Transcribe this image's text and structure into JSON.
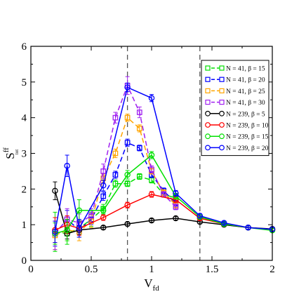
{
  "chart_data": {
    "type": "line",
    "title": "",
    "xlabel_main": "V",
    "xlabel_sub": "fd",
    "ylabel_main": "S",
    "ylabel_sup": "ff",
    "ylabel_sub": "tot",
    "xlim": [
      0,
      2
    ],
    "ylim": [
      0,
      6
    ],
    "xticks": [
      0,
      0.5,
      1,
      1.5,
      2
    ],
    "xtick_labels": [
      "0",
      "0.5",
      "1",
      "1.5",
      "2"
    ],
    "yticks": [
      0,
      1,
      2,
      3,
      4,
      5,
      6
    ],
    "ytick_labels": [
      "0",
      "1",
      "2",
      "3",
      "4",
      "5",
      "6"
    ],
    "grid": false,
    "legend_position": "top-right",
    "vlines": [
      0.8,
      1.4
    ],
    "series": [
      {
        "name": "N = 41,   β = 15",
        "color": "#00e000",
        "marker": "square",
        "dashed": true,
        "x": [
          0.2,
          0.3,
          0.4,
          0.5,
          0.6,
          0.7,
          0.8,
          0.9,
          1.0,
          1.1,
          1.2
        ],
        "y": [
          0.8,
          0.75,
          0.9,
          1.15,
          1.45,
          2.15,
          2.15,
          2.35,
          2.25,
          1.85,
          1.75
        ],
        "err": [
          0.55,
          0.3,
          0.25,
          0.2,
          0.12,
          0.1,
          0.08,
          0.08,
          0.08,
          0.08,
          0.08
        ]
      },
      {
        "name": "N = 41,   β = 20",
        "color": "#0000ff",
        "marker": "square",
        "dashed": true,
        "x": [
          0.2,
          0.3,
          0.4,
          0.5,
          0.6,
          0.7,
          0.8,
          0.9,
          1.0,
          1.1,
          1.2
        ],
        "y": [
          0.75,
          1.15,
          0.85,
          1.15,
          1.8,
          2.4,
          3.3,
          3.15,
          2.4,
          1.95,
          1.6
        ],
        "err": [
          0.35,
          0.25,
          0.2,
          0.15,
          0.12,
          0.1,
          0.1,
          0.08,
          0.08,
          0.08,
          0.08
        ]
      },
      {
        "name": "N = 41,   β = 25",
        "color": "#ffa500",
        "marker": "square",
        "dashed": true,
        "x": [
          0.2,
          0.3,
          0.4,
          0.5,
          0.6,
          0.7,
          0.8,
          0.9,
          1.0,
          1.1,
          1.2
        ],
        "y": [
          0.7,
          0.85,
          0.8,
          1.1,
          2.3,
          3.0,
          4.0,
          3.7,
          2.5,
          1.9,
          1.55
        ],
        "err": [
          0.4,
          0.3,
          0.25,
          0.18,
          0.12,
          0.12,
          0.1,
          0.1,
          0.08,
          0.08,
          0.08
        ]
      },
      {
        "name": "N = 41,   β = 30",
        "color": "#a020f0",
        "marker": "square",
        "dashed": true,
        "x": [
          0.2,
          0.3,
          0.4,
          0.5,
          0.6,
          0.7,
          0.8,
          0.9,
          1.0,
          1.1,
          1.2
        ],
        "y": [
          0.75,
          1.15,
          1.05,
          1.25,
          2.5,
          4.0,
          4.9,
          4.15,
          2.55,
          1.85,
          1.5
        ],
        "err": [
          0.45,
          0.3,
          0.25,
          0.2,
          0.2,
          0.15,
          0.25,
          0.15,
          0.1,
          0.08,
          0.08
        ]
      },
      {
        "name": "N = 239, β = 5",
        "color": "#000000",
        "marker": "circle",
        "dashed": false,
        "x": [
          0.2,
          0.3,
          0.4,
          0.6,
          0.8,
          1.0,
          1.2,
          1.4,
          1.6,
          1.8,
          2.0
        ],
        "y": [
          1.95,
          0.75,
          0.85,
          0.92,
          1.02,
          1.12,
          1.18,
          1.08,
          1.0,
          0.92,
          0.88
        ],
        "err": [
          0.25,
          0.15,
          0.12,
          0.05,
          0.05,
          0.05,
          0.05,
          0.05,
          0.05,
          0.05,
          0.05
        ]
      },
      {
        "name": "N = 239, β = 10",
        "color": "#ff0000",
        "marker": "circle",
        "dashed": false,
        "x": [
          0.2,
          0.3,
          0.4,
          0.6,
          0.8,
          1.0,
          1.2,
          1.4,
          1.6,
          1.8,
          2.0
        ],
        "y": [
          0.85,
          1.0,
          0.9,
          1.2,
          1.55,
          1.85,
          1.7,
          1.18,
          1.02,
          0.92,
          0.86
        ],
        "err": [
          0.35,
          0.25,
          0.2,
          0.08,
          0.08,
          0.08,
          0.08,
          0.06,
          0.05,
          0.05,
          0.05
        ]
      },
      {
        "name": "N = 239, β = 15",
        "color": "#00e000",
        "marker": "circle",
        "dashed": false,
        "x": [
          0.2,
          0.3,
          0.4,
          0.6,
          0.8,
          1.0,
          1.2,
          1.4,
          1.6,
          1.8,
          2.0
        ],
        "y": [
          0.75,
          0.85,
          1.4,
          1.4,
          2.4,
          2.95,
          1.8,
          1.22,
          1.02,
          0.92,
          0.84
        ],
        "err": [
          0.3,
          0.3,
          0.3,
          0.1,
          0.12,
          0.1,
          0.08,
          0.06,
          0.05,
          0.05,
          0.05
        ]
      },
      {
        "name": "N = 239, β = 20",
        "color": "#0000ff",
        "marker": "circle",
        "dashed": false,
        "x": [
          0.2,
          0.3,
          0.4,
          0.6,
          0.8,
          1.0,
          1.2,
          1.4,
          1.6,
          1.8,
          2.0
        ],
        "y": [
          0.8,
          2.65,
          0.9,
          2.1,
          4.85,
          4.55,
          1.88,
          1.25,
          1.05,
          0.92,
          0.87
        ],
        "err": [
          0.3,
          0.3,
          0.25,
          0.15,
          0.12,
          0.1,
          0.08,
          0.06,
          0.05,
          0.05,
          0.05
        ]
      }
    ]
  }
}
